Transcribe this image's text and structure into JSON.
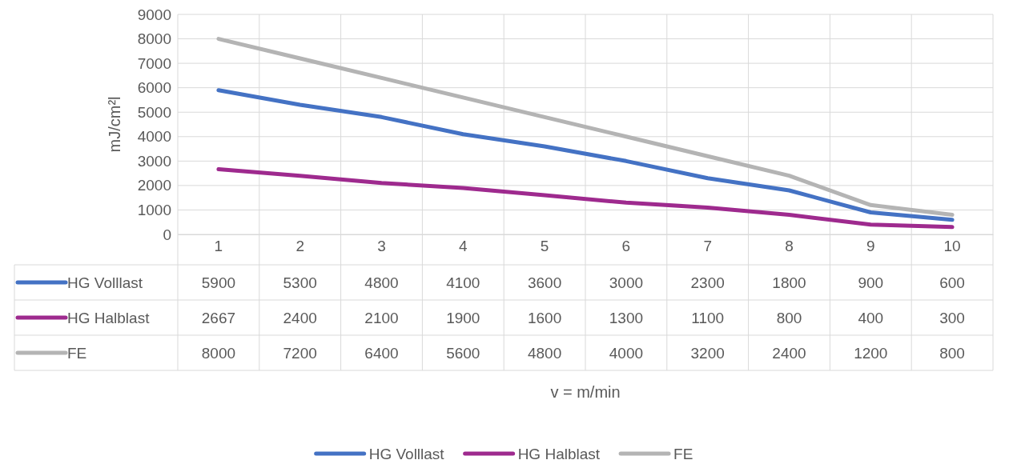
{
  "chart_data": {
    "type": "line",
    "annotations": [
      "v = m/min"
    ],
    "ylabel": "mJ/cm²l",
    "categories": [
      "1",
      "2",
      "3",
      "4",
      "5",
      "6",
      "7",
      "8",
      "9",
      "10"
    ],
    "series": [
      {
        "name": "HG Volllast",
        "color": "#4472c4",
        "values": [
          5900,
          5300,
          4800,
          4100,
          3600,
          3000,
          2300,
          1800,
          900,
          600
        ]
      },
      {
        "name": "HG Halblast",
        "color": "#9e2a8e",
        "values": [
          2667,
          2400,
          2100,
          1900,
          1600,
          1300,
          1100,
          800,
          400,
          300
        ]
      },
      {
        "name": "FE",
        "color": "#b4b4b4",
        "values": [
          8000,
          7200,
          6400,
          5600,
          4800,
          4000,
          3200,
          2400,
          1200,
          800
        ]
      }
    ],
    "ylim": [
      0,
      9000
    ],
    "yticks": [
      0,
      1000,
      2000,
      3000,
      4000,
      5000,
      6000,
      7000,
      8000,
      9000
    ],
    "grid": true,
    "legend": "bottom",
    "data_labels": true,
    "marker": "none",
    "line_style": "solid"
  }
}
